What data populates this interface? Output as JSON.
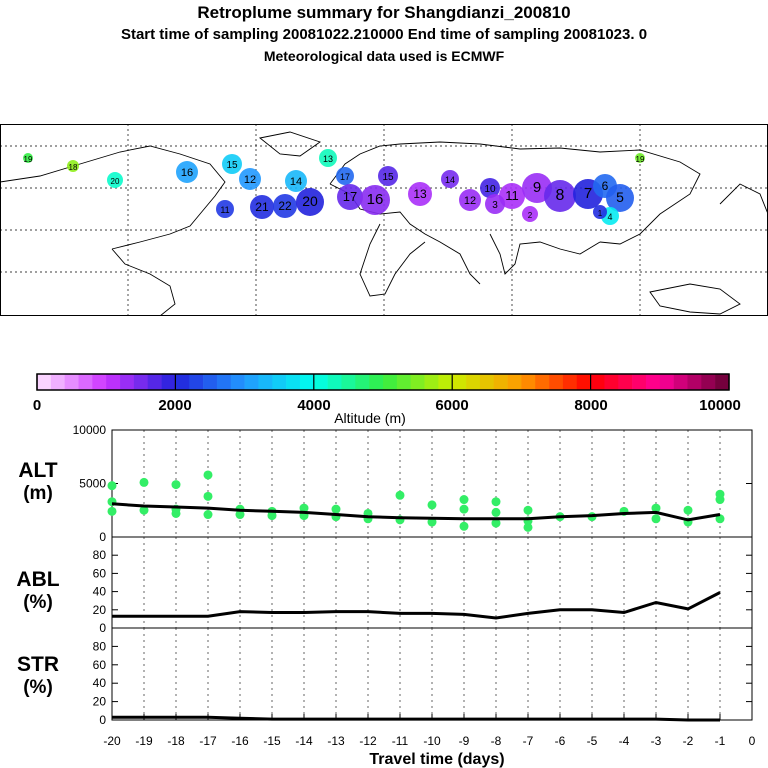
{
  "header": {
    "title": "Retroplume summary for Shangdianzi_200810",
    "sampling_line": "Start time of sampling 20081022.210000     End time of sampling 20081023.     0",
    "met_line": "Meteorological data used is ECMWF"
  },
  "colorbar": {
    "ticks": [
      "0",
      "2000",
      "4000",
      "6000",
      "8000",
      "10000"
    ],
    "label": "Altitude (m)"
  },
  "map": {
    "day_labels": [
      "19",
      "18",
      "20",
      "16",
      "15",
      "12",
      "14",
      "13",
      "17",
      "11",
      "21",
      "22",
      "20",
      "17",
      "16",
      "15",
      "13",
      "14",
      "12",
      "10",
      "11",
      "9",
      "8",
      "7",
      "6",
      "5",
      "4",
      "3",
      "2",
      "1",
      "19"
    ]
  },
  "chart_data": [
    {
      "type": "line",
      "panel": "ALT",
      "ylabel": "ALT",
      "yunit": "(m)",
      "ylim": [
        0,
        10000
      ],
      "yticks": [
        "10000",
        "5000",
        "0"
      ],
      "ytick_values": [
        10000,
        5000,
        0
      ],
      "x": [
        -20,
        -19,
        -18,
        -17,
        -16,
        -15,
        -14,
        -13,
        -12,
        -11,
        -10,
        -9,
        -8,
        -7,
        -6,
        -5,
        -4,
        -3,
        -2,
        -1
      ],
      "series": [
        {
          "name": "mean altitude",
          "values": [
            3100,
            2900,
            2800,
            2700,
            2500,
            2400,
            2300,
            2100,
            1900,
            1800,
            1750,
            1700,
            1700,
            1700,
            1900,
            2000,
            2200,
            2300,
            1600,
            2100
          ]
        }
      ],
      "scatter": [
        {
          "x": -20,
          "y": 3300
        },
        {
          "x": -20,
          "y": 2400
        },
        {
          "x": -20,
          "y": 4800
        },
        {
          "x": -19,
          "y": 5100
        },
        {
          "x": -19,
          "y": 2500
        },
        {
          "x": -18,
          "y": 4900
        },
        {
          "x": -18,
          "y": 2600
        },
        {
          "x": -18,
          "y": 2200
        },
        {
          "x": -17,
          "y": 3800
        },
        {
          "x": -17,
          "y": 2100
        },
        {
          "x": -17,
          "y": 5800
        },
        {
          "x": -16,
          "y": 2600
        },
        {
          "x": -16,
          "y": 2100
        },
        {
          "x": -15,
          "y": 2400
        },
        {
          "x": -15,
          "y": 2000
        },
        {
          "x": -14,
          "y": 2700
        },
        {
          "x": -14,
          "y": 2000
        },
        {
          "x": -13,
          "y": 2600
        },
        {
          "x": -13,
          "y": 1900
        },
        {
          "x": -12,
          "y": 2200
        },
        {
          "x": -12,
          "y": 1700
        },
        {
          "x": -11,
          "y": 1600
        },
        {
          "x": -11,
          "y": 3900
        },
        {
          "x": -10,
          "y": 3000
        },
        {
          "x": -10,
          "y": 1400
        },
        {
          "x": -9,
          "y": 3500
        },
        {
          "x": -9,
          "y": 2600
        },
        {
          "x": -9,
          "y": 1000
        },
        {
          "x": -8,
          "y": 3300
        },
        {
          "x": -8,
          "y": 2300
        },
        {
          "x": -8,
          "y": 1300
        },
        {
          "x": -7,
          "y": 2500
        },
        {
          "x": -7,
          "y": 1500
        },
        {
          "x": -7,
          "y": 900
        },
        {
          "x": -6,
          "y": 1900
        },
        {
          "x": -5,
          "y": 1900
        },
        {
          "x": -4,
          "y": 2400
        },
        {
          "x": -3,
          "y": 2700
        },
        {
          "x": -3,
          "y": 1700
        },
        {
          "x": -2,
          "y": 2500
        },
        {
          "x": -2,
          "y": 1400
        },
        {
          "x": -1,
          "y": 3500
        },
        {
          "x": -1,
          "y": 1700
        },
        {
          "x": -1,
          "y": 4000
        }
      ]
    },
    {
      "type": "line",
      "panel": "ABL",
      "ylabel": "ABL",
      "yunit": "(%)",
      "ylim": [
        0,
        100
      ],
      "yticks": [
        "80",
        "60",
        "40",
        "20",
        "0"
      ],
      "ytick_values": [
        80,
        60,
        40,
        20,
        0
      ],
      "x": [
        -20,
        -19,
        -18,
        -17,
        -16,
        -15,
        -14,
        -13,
        -12,
        -11,
        -10,
        -9,
        -8,
        -7,
        -6,
        -5,
        -4,
        -3,
        -2,
        -1
      ],
      "series": [
        {
          "name": "ABL fraction",
          "values": [
            13,
            13,
            13,
            13,
            18,
            17,
            17,
            18,
            18,
            16,
            16,
            15,
            11,
            16,
            20,
            20,
            17,
            28,
            21,
            39
          ]
        }
      ]
    },
    {
      "type": "line",
      "panel": "STR",
      "ylabel": "STR",
      "yunit": "(%)",
      "ylim": [
        0,
        100
      ],
      "yticks": [
        "80",
        "60",
        "40",
        "20",
        "0"
      ],
      "ytick_values": [
        80,
        60,
        40,
        20,
        0
      ],
      "x": [
        -20,
        -19,
        -18,
        -17,
        -16,
        -15,
        -14,
        -13,
        -12,
        -11,
        -10,
        -9,
        -8,
        -7,
        -6,
        -5,
        -4,
        -3,
        -2,
        -1
      ],
      "series": [
        {
          "name": "stratospheric fraction",
          "values": [
            3,
            3,
            3,
            3,
            2,
            1,
            1,
            1,
            1,
            1,
            1,
            1,
            1,
            1,
            1,
            1,
            1,
            1,
            0,
            0
          ]
        }
      ],
      "xlabel": "Travel time (days)",
      "xticks": [
        "-20",
        "-19",
        "-18",
        "-17",
        "-16",
        "-15",
        "-14",
        "-13",
        "-12",
        "-11",
        "-10",
        "-9",
        "-8",
        "-7",
        "-6",
        "-5",
        "-4",
        "-3",
        "-2",
        "-1",
        "0"
      ],
      "xlim": [
        -20,
        0
      ]
    }
  ],
  "colors": {
    "scatter": "#33ee66",
    "line": "#000000"
  }
}
